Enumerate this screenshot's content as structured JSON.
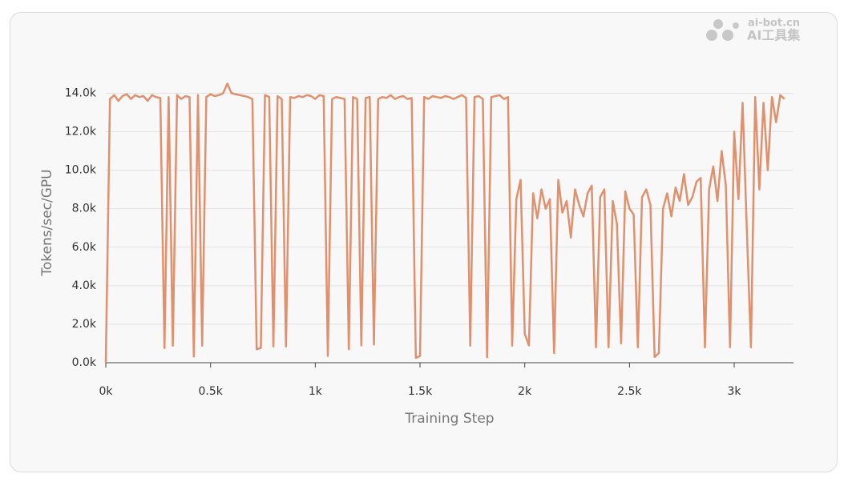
{
  "chart_data": {
    "type": "line",
    "xlabel": "Training Step",
    "ylabel": "Tokens/sec/GPU",
    "watermark": {
      "site": "ai-bot.cn",
      "name": "AI工具集"
    },
    "x": [
      0,
      20,
      40,
      60,
      80,
      100,
      120,
      140,
      160,
      180,
      200,
      220,
      240,
      260,
      280,
      300,
      320,
      340,
      360,
      380,
      400,
      420,
      440,
      460,
      480,
      500,
      520,
      540,
      560,
      580,
      600,
      620,
      640,
      660,
      680,
      700,
      720,
      740,
      760,
      780,
      800,
      820,
      840,
      860,
      880,
      900,
      920,
      940,
      960,
      980,
      1000,
      1020,
      1040,
      1060,
      1080,
      1100,
      1120,
      1140,
      1160,
      1180,
      1200,
      1220,
      1240,
      1260,
      1280,
      1300,
      1320,
      1340,
      1360,
      1380,
      1400,
      1420,
      1440,
      1460,
      1480,
      1500,
      1520,
      1540,
      1560,
      1580,
      1600,
      1620,
      1640,
      1660,
      1680,
      1700,
      1720,
      1740,
      1760,
      1780,
      1800,
      1820,
      1840,
      1860,
      1880,
      1900,
      1920,
      1940,
      1960,
      1980,
      2000,
      2020,
      2040,
      2060,
      2080,
      2100,
      2120,
      2140,
      2160,
      2180,
      2200,
      2220,
      2240,
      2260,
      2280,
      2300,
      2320,
      2340,
      2360,
      2380,
      2400,
      2420,
      2440,
      2460,
      2480,
      2500,
      2520,
      2540,
      2560,
      2580,
      2600,
      2620,
      2640,
      2660,
      2680,
      2700,
      2720,
      2740,
      2760,
      2780,
      2800,
      2820,
      2840,
      2860,
      2880,
      2900,
      2920,
      2940,
      2960,
      2980,
      3000,
      3020,
      3040,
      3060,
      3080,
      3100,
      3120,
      3140,
      3160,
      3180,
      3200,
      3220,
      3240
    ],
    "series": [
      {
        "color": "#e0906c",
        "values": [
          0,
          13700,
          13900,
          13600,
          13850,
          13950,
          13700,
          13900,
          13800,
          13850,
          13600,
          13900,
          13800,
          13750,
          760,
          13800,
          880,
          13900,
          13700,
          13850,
          13800,
          320,
          13900,
          880,
          13800,
          13950,
          13850,
          13900,
          14000,
          14500,
          14000,
          13950,
          13900,
          13850,
          13800,
          13700,
          700,
          760,
          13900,
          13800,
          840,
          13850,
          13700,
          840,
          13800,
          13750,
          13850,
          13800,
          13900,
          13850,
          13700,
          13900,
          13850,
          350,
          13700,
          13800,
          13750,
          13700,
          700,
          13800,
          13700,
          900,
          13750,
          13800,
          940,
          13700,
          13800,
          13750,
          13900,
          13700,
          13800,
          13850,
          13700,
          13750,
          250,
          350,
          13800,
          13700,
          13850,
          13800,
          13750,
          13850,
          13800,
          13700,
          13800,
          13900,
          13750,
          880,
          13800,
          13850,
          13700,
          280,
          13800,
          13850,
          13900,
          13700,
          13800,
          880,
          8500,
          9500,
          1500,
          900,
          8800,
          7500,
          9000,
          8000,
          8500,
          500,
          9500,
          7800,
          8400,
          6500,
          9000,
          8200,
          7600,
          8800,
          9200,
          800,
          8600,
          9000,
          800,
          8400,
          7200,
          1000,
          8900,
          8000,
          7700,
          800,
          8600,
          9000,
          8200,
          300,
          500,
          8000,
          8800,
          7600,
          9100,
          8400,
          9800,
          8200,
          8600,
          9400,
          9600,
          800,
          9000,
          10200,
          8400,
          11000,
          9200,
          800,
          12000,
          8500,
          13500,
          7000,
          800,
          13800,
          9000,
          13500,
          10000,
          13800,
          12500,
          13900,
          13700
        ]
      }
    ],
    "xlim": [
      0,
      3283
    ],
    "ylim": [
      0,
      14600
    ],
    "xticks": [
      {
        "value": 0,
        "label": "0k"
      },
      {
        "value": 500,
        "label": "0.5k"
      },
      {
        "value": 1000,
        "label": "1k"
      },
      {
        "value": 1500,
        "label": "1.5k"
      },
      {
        "value": 2000,
        "label": "2k"
      },
      {
        "value": 2500,
        "label": "2.5k"
      },
      {
        "value": 3000,
        "label": "3k"
      }
    ],
    "yticks": [
      {
        "value": 0,
        "label": "0.0k"
      },
      {
        "value": 2000,
        "label": "2.0k"
      },
      {
        "value": 4000,
        "label": "4.0k"
      },
      {
        "value": 6000,
        "label": "6.0k"
      },
      {
        "value": 8000,
        "label": "8.0k"
      },
      {
        "value": 10000,
        "label": "10.0k"
      },
      {
        "value": 12000,
        "label": "12.0k"
      },
      {
        "value": 14000,
        "label": "14.0k"
      }
    ],
    "grid": true
  }
}
